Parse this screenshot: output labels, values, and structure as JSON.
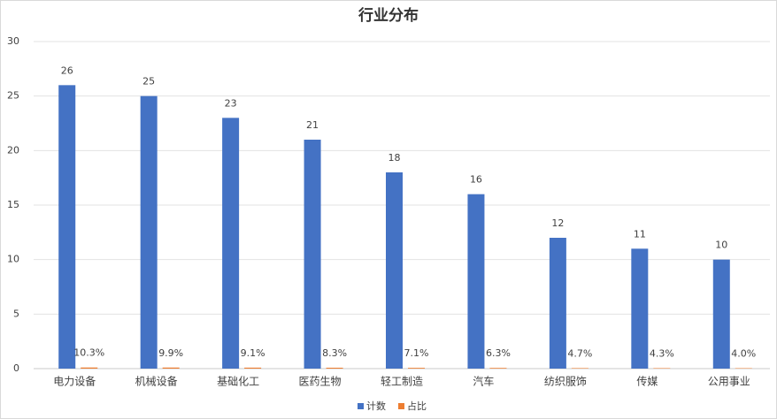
{
  "chart_data": {
    "type": "bar",
    "title": "行业分布",
    "categories": [
      "电力设备",
      "机械设备",
      "基础化工",
      "医药生物",
      "轻工制造",
      "汽车",
      "纺织服饰",
      "传媒",
      "公用事业"
    ],
    "series": [
      {
        "name": "计数",
        "color": "#4472c4",
        "values": [
          26,
          25,
          23,
          21,
          18,
          16,
          12,
          11,
          10
        ]
      },
      {
        "name": "占比",
        "color": "#ed7d31",
        "values": [
          0.103,
          0.099,
          0.091,
          0.083,
          0.071,
          0.063,
          0.047,
          0.043,
          0.04
        ],
        "value_labels": [
          "10.3%",
          "9.9%",
          "9.1%",
          "8.3%",
          "7.1%",
          "6.3%",
          "4.7%",
          "4.3%",
          "4.0%"
        ]
      }
    ],
    "ylim": [
      0,
      30
    ],
    "yticks": [
      0,
      5,
      10,
      15,
      20,
      25,
      30
    ],
    "grid": true,
    "legend": "bottom"
  }
}
